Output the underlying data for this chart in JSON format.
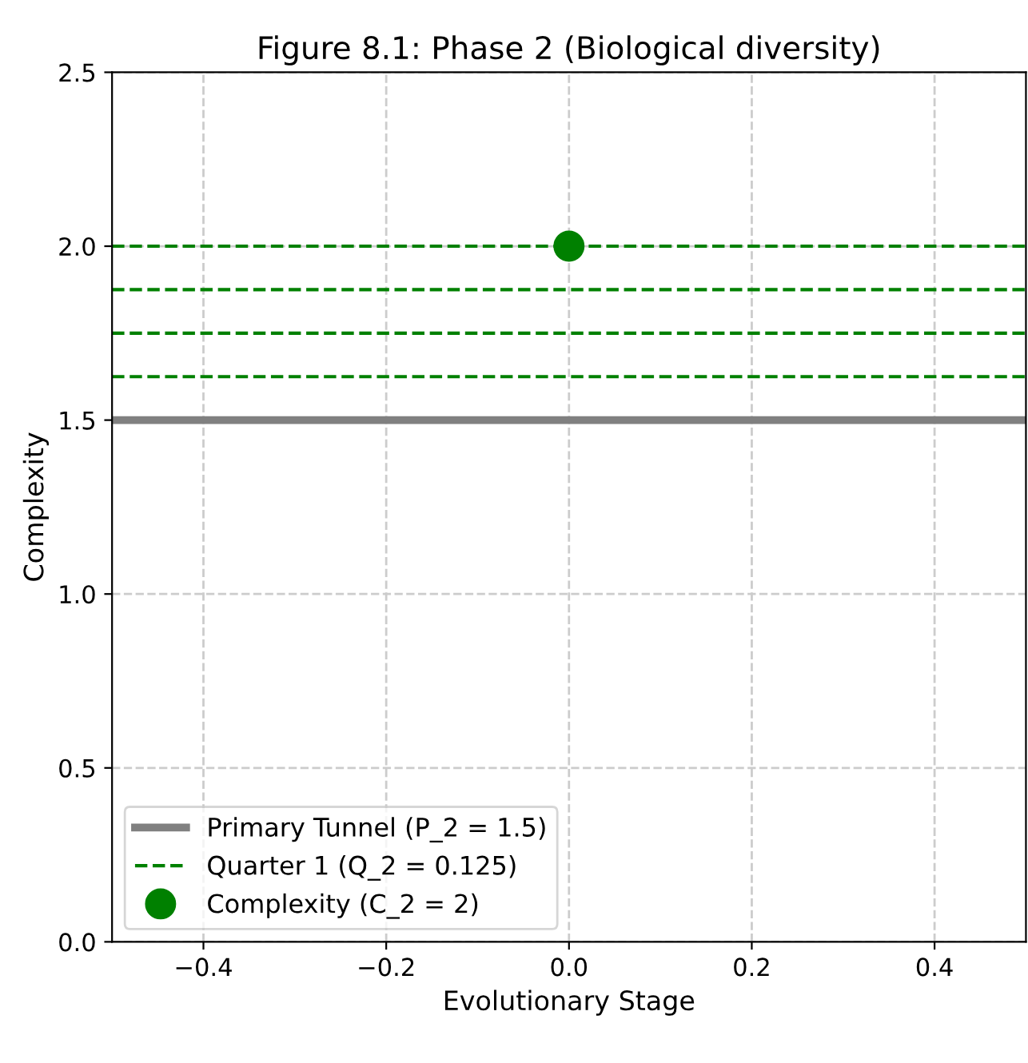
{
  "chart_data": {
    "type": "line",
    "title": "Figure 8.1: Phase 2 (Biological diversity)",
    "xlabel": "Evolutionary Stage",
    "ylabel": "Complexity",
    "xlim": [
      -0.5,
      0.5
    ],
    "ylim": [
      0,
      2.5
    ],
    "xticks": [
      {
        "value": -0.4,
        "label": "−0.4"
      },
      {
        "value": -0.2,
        "label": "−0.2"
      },
      {
        "value": 0,
        "label": "0.0"
      },
      {
        "value": 0.2,
        "label": "0.2"
      },
      {
        "value": 0.4,
        "label": "0.4"
      }
    ],
    "yticks": [
      {
        "value": 0,
        "label": "0.0"
      },
      {
        "value": 0.5,
        "label": "0.5"
      },
      {
        "value": 1,
        "label": "1.0"
      },
      {
        "value": 1.5,
        "label": "1.5"
      },
      {
        "value": 2,
        "label": "2.0"
      },
      {
        "value": 2.5,
        "label": "2.5"
      }
    ],
    "grid": true,
    "legend": "bottom left",
    "series": [
      {
        "name": "Primary Tunnel (P_2 = 1.5)",
        "color": "#808080",
        "line_style": "solid",
        "x": [
          -0.5,
          0.5
        ],
        "values": [
          1.5,
          1.5
        ]
      },
      {
        "name": "Quarter 1 (Q_2 = 0.125)",
        "color": "#008000",
        "line_style": "dashed",
        "x": [
          -0.5,
          0.5
        ],
        "values": [
          1.625,
          1.625
        ]
      },
      {
        "color": "#008000",
        "line_style": "dashed",
        "x": [
          -0.5,
          0.5
        ],
        "values": [
          1.75,
          1.75
        ]
      },
      {
        "color": "#008000",
        "line_style": "dashed",
        "x": [
          -0.5,
          0.5
        ],
        "values": [
          1.875,
          1.875
        ]
      },
      {
        "color": "#008000",
        "line_style": "dashed",
        "x": [
          -0.5,
          0.5
        ],
        "values": [
          2.0,
          2.0
        ]
      },
      {
        "name": "Complexity (C_2 = 2)",
        "type": "scatter",
        "color": "#008000",
        "marker": "circle",
        "x": [
          0
        ],
        "values": [
          2
        ]
      }
    ]
  }
}
